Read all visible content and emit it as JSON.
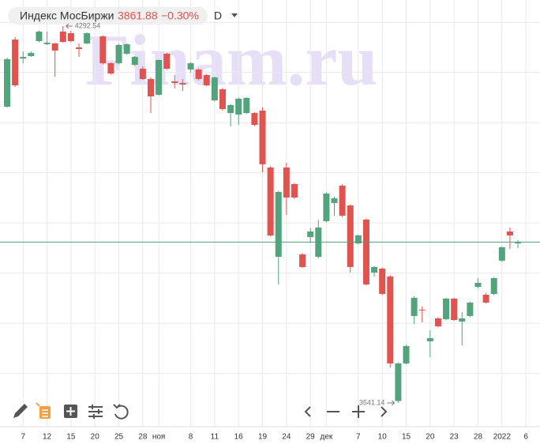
{
  "header": {
    "title": "Индекс МосБиржи",
    "change": "−0.30%",
    "interval": "D"
  },
  "watermark": "Finam.ru",
  "chart_data": {
    "type": "candlestick",
    "categories": [
      null,
      null,
      "7",
      null,
      null,
      "12",
      null,
      null,
      "15",
      null,
      null,
      "20",
      null,
      null,
      "25",
      null,
      null,
      "28",
      null,
      "ноя",
      null,
      null,
      null,
      "8",
      null,
      null,
      "11",
      null,
      null,
      "16",
      null,
      null,
      "19",
      null,
      null,
      "24",
      null,
      null,
      "29",
      null,
      "дек",
      null,
      null,
      null,
      "7",
      null,
      null,
      "10",
      null,
      null,
      "15",
      null,
      null,
      "20",
      null,
      null,
      "23",
      null,
      null,
      "28",
      null,
      null,
      "2022",
      null,
      null,
      "6"
    ],
    "open": [
      4131.8,
      4265.7,
      4228.0,
      4232.7,
      4262.6,
      4256.3,
      4257.9,
      4281.5,
      4278.3,
      4250.0,
      4257.9,
      null,
      4272.0,
      4218.5,
      4218.5,
      4237.4,
      4215.3,
      4207.5,
      4187.0,
      4155.5,
      4237.4,
      4182.2,
      4179.1,
      4205.9,
      4205.9,
      4194.9,
      4144.4,
      4166.5,
      4119.2,
      4116.1,
      4119.2,
      4119.2,
      4124.0,
      4010.5,
      3832.5,
      4010.5,
      3977.5,
      3837.3,
      3871.9,
      3832.5,
      3903.5,
      3939.7,
      3974.3,
      3934.9,
      3859.3,
      3906.6,
      3801.0,
      3808.9,
      3793.2,
      3545.0,
      3619.9,
      3714.4,
      3727.0,
      3664.0,
      3709.7,
      3708.1,
      3749.0,
      3703.4,
      3714.4,
      3772.6,
      3756.9,
      3758.5,
      3824.7,
      3883.0,
      3859.3,
      null
    ],
    "high": [
      4229.5,
      4270.5,
      4242,
      4242,
      4284,
      4281.5,
      4259,
      4292.54,
      4283,
      4257.9,
      4280,
      null,
      4274,
      4220,
      4257,
      4258,
      4233,
      4212,
      4190,
      4226,
      4240,
      4194.9,
      4187,
      4221,
      4208,
      4197,
      4192,
      4169,
      4137,
      4150,
      4151,
      4121,
      4130.3,
      4013,
      3964,
      4020,
      3980,
      3840,
      3890,
      3906,
      3961,
      3952,
      3977,
      3937,
      3877,
      3909,
      3814,
      3811,
      3796,
      3622,
      3657,
      3753.7,
      3733.3,
      3686,
      3712,
      3751,
      3751,
      3722.3,
      3743,
      3790,
      3760,
      3792,
      3853,
      3890.9,
      3866,
      null
    ],
    "low": [
      4130,
      4171.2,
      4218,
      4231,
      4260,
      4254.7,
      4191.7,
      4259,
      4260,
      4231.1,
      4256,
      null,
      4216,
      4196,
      4216,
      4235,
      4213,
      4185,
      4119.2,
      4154,
      4205,
      4168.1,
      4163.3,
      4200,
      4184,
      4172,
      4142,
      4124,
      4092.5,
      4095.6,
      4117,
      4093,
      4001.1,
      3873,
      3777.4,
      3916,
      3948,
      3810,
      3860,
      3830,
      3901,
      3914.5,
      3912,
      3801,
      3857,
      3775,
      3793.2,
      3756,
      3612,
      3541.14,
      3618,
      3698.6,
      3701.8,
      3632.5,
      3692,
      3706,
      3705,
      3656.1,
      3712,
      3769.5,
      3739,
      3756,
      3822,
      3848.3,
      3850,
      null
    ],
    "close": [
      4226.4,
      4174.4,
      4231.1,
      4239.0,
      4281.5,
      4259.4,
      4243.7,
      4261.0,
      4262.6,
      4246.8,
      4278.3,
      null,
      4218.5,
      4198.0,
      4254.7,
      4256.3,
      4231.1,
      4187.0,
      4152.3,
      4224.8,
      4207.5,
      4179.1,
      4176.0,
      4218.5,
      4187.0,
      4174.4,
      4190.1,
      4127.1,
      4135.0,
      4147.6,
      4149.2,
      4095.6,
      4016.9,
      3875.1,
      3961.7,
      3950.7,
      3950.7,
      3812.1,
      3883.0,
      3890.9,
      3958.6,
      3949.1,
      3914.5,
      3812.1,
      3875.1,
      3777.4,
      3812.1,
      3758.5,
      3619.9,
      3619.9,
      3654.5,
      3750.6,
      3725.4,
      3670.3,
      3693.9,
      3749.0,
      3706.5,
      3709.7,
      3741.1,
      3780.5,
      3741.1,
      3790.0,
      3851.4,
      3875.1,
      3861.88,
      null
    ],
    "up_color": "#52a47c",
    "down_color": "#e0534f",
    "last_line_color": "#4f9f80",
    "ylim": [
      3493.8,
      4344.5
    ],
    "yticks": [
      3600,
      3700,
      3800,
      3900,
      4000,
      4100,
      4200,
      4300
    ],
    "grid": true
  }
}
